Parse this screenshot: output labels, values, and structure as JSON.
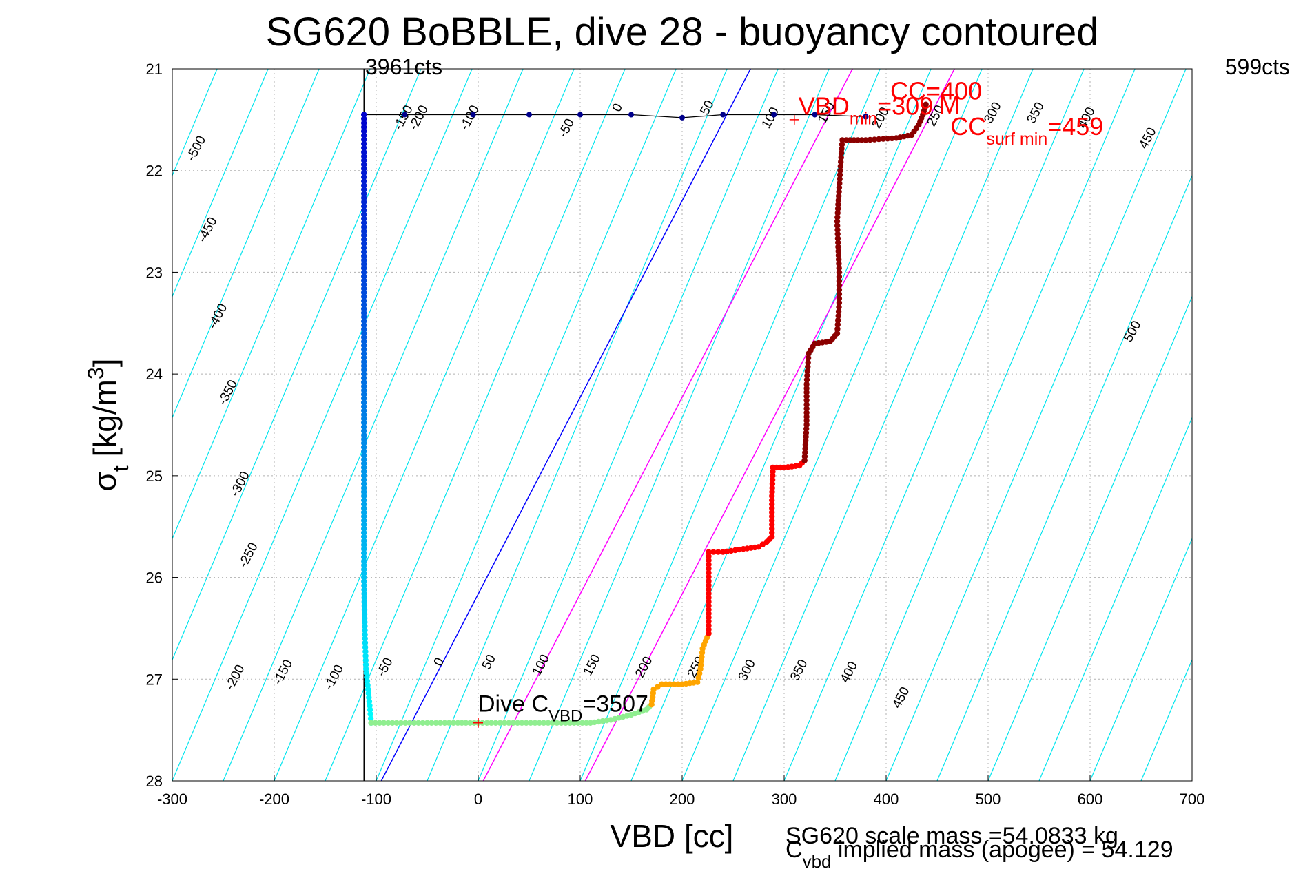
{
  "chart_data": {
    "type": "scatter",
    "title": "SG620 BoBBLE, dive 28 - buoyancy contoured",
    "xlabel": "VBD [cc]",
    "ylabel": {
      "main": "σ",
      "sub": "t",
      "bracket": " [kg/m",
      "sup": "3",
      "close": "]"
    },
    "xlim": [
      -300,
      700
    ],
    "ylim": [
      21,
      28
    ],
    "y_reversed": true,
    "grid": true,
    "xticks": [
      -300,
      -200,
      -100,
      0,
      100,
      200,
      300,
      400,
      500,
      600,
      700
    ],
    "yticks": [
      21,
      22,
      23,
      24,
      25,
      26,
      27,
      28
    ],
    "top_left_label": "3961cts",
    "top_right_label": "599cts",
    "buoyancy_contours": {
      "color": "#00e5ee",
      "slope_cc_per_sigma": -42,
      "levels_upper_labels": [
        -500,
        -450,
        -400,
        -350,
        -300,
        -250,
        -200,
        -150,
        -100,
        -50,
        0,
        50,
        100,
        150,
        200,
        250,
        300,
        350,
        400,
        450,
        500
      ],
      "levels_lower_labels": [
        -200,
        -150,
        -100,
        -50,
        0,
        50,
        100,
        150,
        200,
        250,
        300,
        350,
        400,
        450
      ]
    },
    "reference_lines": [
      {
        "name": "apogee",
        "color": "#0000ff",
        "points": [
          [
            -95,
            28
          ],
          [
            267,
            21
          ]
        ]
      },
      {
        "name": "c_vbd",
        "color": "#ff00ff",
        "points": [
          [
            5,
            28
          ],
          [
            367,
            21
          ]
        ]
      },
      {
        "name": "c_vbd_2",
        "color": "#ff00ff",
        "points": [
          [
            105,
            28
          ],
          [
            467,
            21
          ]
        ]
      },
      {
        "name": "vbd_min_line",
        "color": "#000000",
        "points": [
          [
            -112,
            28
          ],
          [
            -112,
            21
          ]
        ]
      }
    ],
    "annotations": [
      {
        "text": "VBD",
        "sub": "min",
        "rest": "=309",
        "color": "#ff0000",
        "x": 310,
        "y": 21.45
      },
      {
        "text": "CC",
        "sub": "",
        "rest": "=400",
        "color": "#ff0000",
        "x": 400,
        "y": 21.3
      },
      {
        "text": "M",
        "sub": "",
        "rest": "",
        "color": "#ff0000",
        "x": 448,
        "y": 21.44
      },
      {
        "text": "CC",
        "sub": "surf min",
        "rest": "=459",
        "color": "#ff0000",
        "x": 459,
        "y": 21.65
      },
      {
        "text": "Dive C",
        "sub": "VBD",
        "rest": "=3507",
        "color": "#000000",
        "x": 0,
        "y": 27.32
      }
    ],
    "footer_lines": [
      "SG620 scale mass =54.0833 kg",
      {
        "text": "C",
        "sub": "vbd",
        "rest": " implied mass (apogee) = 54.129"
      }
    ],
    "series": [
      {
        "role": "surface-apogee",
        "color": "#00008b",
        "points": [
          [
            -112,
            21.45
          ],
          [
            -72,
            21.45
          ],
          [
            -5,
            21.45
          ],
          [
            50,
            21.45
          ],
          [
            100,
            21.45
          ],
          [
            150,
            21.45
          ],
          [
            200,
            21.48
          ],
          [
            240,
            21.45
          ],
          [
            290,
            21.45
          ],
          [
            330,
            21.45
          ],
          [
            380,
            21.47
          ]
        ]
      },
      {
        "role": "descent",
        "color_top": "#0000cd",
        "color_bottom": "#00ffff",
        "points": [
          [
            -112,
            21.45
          ],
          [
            -112,
            22.8
          ],
          [
            -112,
            24.0
          ],
          [
            -112,
            25.0
          ],
          [
            -112,
            26.0
          ],
          [
            -111,
            26.6
          ],
          [
            -110,
            26.9
          ],
          [
            -108,
            27.1
          ],
          [
            -106,
            27.3
          ],
          [
            -105,
            27.43
          ]
        ]
      },
      {
        "role": "bottom",
        "color": "#90ee90",
        "points": [
          [
            -105,
            27.43
          ],
          [
            -80,
            27.43
          ],
          [
            -50,
            27.43
          ],
          [
            -20,
            27.43
          ],
          [
            0,
            27.43
          ],
          [
            30,
            27.43
          ],
          [
            60,
            27.43
          ],
          [
            90,
            27.43
          ],
          [
            110,
            27.43
          ],
          [
            130,
            27.4
          ],
          [
            150,
            27.35
          ],
          [
            165,
            27.3
          ],
          [
            170,
            27.25
          ]
        ]
      },
      {
        "role": "climb-lower",
        "color": "#ffa500",
        "points": [
          [
            170,
            27.25
          ],
          [
            172,
            27.1
          ],
          [
            180,
            27.05
          ],
          [
            200,
            27.05
          ],
          [
            215,
            27.03
          ],
          [
            218,
            26.9
          ],
          [
            220,
            26.7
          ],
          [
            226,
            26.55
          ]
        ]
      },
      {
        "role": "climb-mid",
        "color": "#ff0000",
        "points": [
          [
            226,
            26.55
          ],
          [
            226,
            26.2
          ],
          [
            226,
            25.75
          ],
          [
            240,
            25.75
          ],
          [
            260,
            25.72
          ],
          [
            275,
            25.7
          ],
          [
            283,
            25.65
          ],
          [
            288,
            25.6
          ],
          [
            288,
            25.2
          ],
          [
            289,
            24.92
          ],
          [
            300,
            24.92
          ],
          [
            315,
            24.9
          ],
          [
            320,
            24.85
          ]
        ]
      },
      {
        "role": "climb-upper",
        "color": "#8b0000",
        "points": [
          [
            320,
            24.85
          ],
          [
            322,
            24.5
          ],
          [
            322,
            24.1
          ],
          [
            324,
            23.8
          ],
          [
            330,
            23.7
          ],
          [
            345,
            23.68
          ],
          [
            352,
            23.6
          ],
          [
            354,
            23.3
          ],
          [
            354,
            23.0
          ],
          [
            352,
            22.5
          ],
          [
            355,
            22.0
          ],
          [
            357,
            21.7
          ],
          [
            380,
            21.7
          ],
          [
            410,
            21.68
          ],
          [
            425,
            21.65
          ],
          [
            432,
            21.55
          ],
          [
            436,
            21.45
          ],
          [
            439,
            21.35
          ]
        ]
      }
    ]
  }
}
